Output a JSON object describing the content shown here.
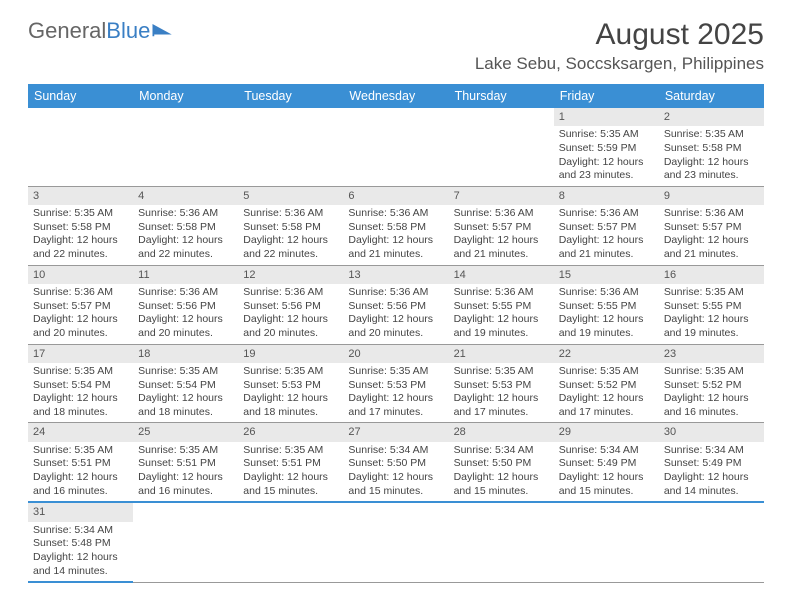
{
  "brand": {
    "part1": "General",
    "part2": "Blue"
  },
  "header": {
    "month_year": "August 2025",
    "location": "Lake Sebu, Soccsksargen, Philippines"
  },
  "colors": {
    "header_bg": "#3a8fd4",
    "header_text": "#ffffff",
    "daynum_bg": "#e9e9e9",
    "text": "#444444",
    "border": "#999999",
    "brand_blue": "#3a7fc4",
    "background": "#ffffff"
  },
  "calendar": {
    "days_of_week": [
      "Sunday",
      "Monday",
      "Tuesday",
      "Wednesday",
      "Thursday",
      "Friday",
      "Saturday"
    ],
    "weeks": [
      [
        null,
        null,
        null,
        null,
        null,
        {
          "n": "1",
          "sr": "5:35 AM",
          "ss": "5:59 PM",
          "dl": "12 hours and 23 minutes."
        },
        {
          "n": "2",
          "sr": "5:35 AM",
          "ss": "5:58 PM",
          "dl": "12 hours and 23 minutes."
        }
      ],
      [
        {
          "n": "3",
          "sr": "5:35 AM",
          "ss": "5:58 PM",
          "dl": "12 hours and 22 minutes."
        },
        {
          "n": "4",
          "sr": "5:36 AM",
          "ss": "5:58 PM",
          "dl": "12 hours and 22 minutes."
        },
        {
          "n": "5",
          "sr": "5:36 AM",
          "ss": "5:58 PM",
          "dl": "12 hours and 22 minutes."
        },
        {
          "n": "6",
          "sr": "5:36 AM",
          "ss": "5:58 PM",
          "dl": "12 hours and 21 minutes."
        },
        {
          "n": "7",
          "sr": "5:36 AM",
          "ss": "5:57 PM",
          "dl": "12 hours and 21 minutes."
        },
        {
          "n": "8",
          "sr": "5:36 AM",
          "ss": "5:57 PM",
          "dl": "12 hours and 21 minutes."
        },
        {
          "n": "9",
          "sr": "5:36 AM",
          "ss": "5:57 PM",
          "dl": "12 hours and 21 minutes."
        }
      ],
      [
        {
          "n": "10",
          "sr": "5:36 AM",
          "ss": "5:57 PM",
          "dl": "12 hours and 20 minutes."
        },
        {
          "n": "11",
          "sr": "5:36 AM",
          "ss": "5:56 PM",
          "dl": "12 hours and 20 minutes."
        },
        {
          "n": "12",
          "sr": "5:36 AM",
          "ss": "5:56 PM",
          "dl": "12 hours and 20 minutes."
        },
        {
          "n": "13",
          "sr": "5:36 AM",
          "ss": "5:56 PM",
          "dl": "12 hours and 20 minutes."
        },
        {
          "n": "14",
          "sr": "5:36 AM",
          "ss": "5:55 PM",
          "dl": "12 hours and 19 minutes."
        },
        {
          "n": "15",
          "sr": "5:36 AM",
          "ss": "5:55 PM",
          "dl": "12 hours and 19 minutes."
        },
        {
          "n": "16",
          "sr": "5:35 AM",
          "ss": "5:55 PM",
          "dl": "12 hours and 19 minutes."
        }
      ],
      [
        {
          "n": "17",
          "sr": "5:35 AM",
          "ss": "5:54 PM",
          "dl": "12 hours and 18 minutes."
        },
        {
          "n": "18",
          "sr": "5:35 AM",
          "ss": "5:54 PM",
          "dl": "12 hours and 18 minutes."
        },
        {
          "n": "19",
          "sr": "5:35 AM",
          "ss": "5:53 PM",
          "dl": "12 hours and 18 minutes."
        },
        {
          "n": "20",
          "sr": "5:35 AM",
          "ss": "5:53 PM",
          "dl": "12 hours and 17 minutes."
        },
        {
          "n": "21",
          "sr": "5:35 AM",
          "ss": "5:53 PM",
          "dl": "12 hours and 17 minutes."
        },
        {
          "n": "22",
          "sr": "5:35 AM",
          "ss": "5:52 PM",
          "dl": "12 hours and 17 minutes."
        },
        {
          "n": "23",
          "sr": "5:35 AM",
          "ss": "5:52 PM",
          "dl": "12 hours and 16 minutes."
        }
      ],
      [
        {
          "n": "24",
          "sr": "5:35 AM",
          "ss": "5:51 PM",
          "dl": "12 hours and 16 minutes."
        },
        {
          "n": "25",
          "sr": "5:35 AM",
          "ss": "5:51 PM",
          "dl": "12 hours and 16 minutes."
        },
        {
          "n": "26",
          "sr": "5:35 AM",
          "ss": "5:51 PM",
          "dl": "12 hours and 15 minutes."
        },
        {
          "n": "27",
          "sr": "5:34 AM",
          "ss": "5:50 PM",
          "dl": "12 hours and 15 minutes."
        },
        {
          "n": "28",
          "sr": "5:34 AM",
          "ss": "5:50 PM",
          "dl": "12 hours and 15 minutes."
        },
        {
          "n": "29",
          "sr": "5:34 AM",
          "ss": "5:49 PM",
          "dl": "12 hours and 15 minutes."
        },
        {
          "n": "30",
          "sr": "5:34 AM",
          "ss": "5:49 PM",
          "dl": "12 hours and 14 minutes."
        }
      ],
      [
        {
          "n": "31",
          "sr": "5:34 AM",
          "ss": "5:48 PM",
          "dl": "12 hours and 14 minutes."
        },
        null,
        null,
        null,
        null,
        null,
        null
      ]
    ],
    "labels": {
      "sunrise": "Sunrise:",
      "sunset": "Sunset:",
      "daylight": "Daylight:"
    }
  }
}
